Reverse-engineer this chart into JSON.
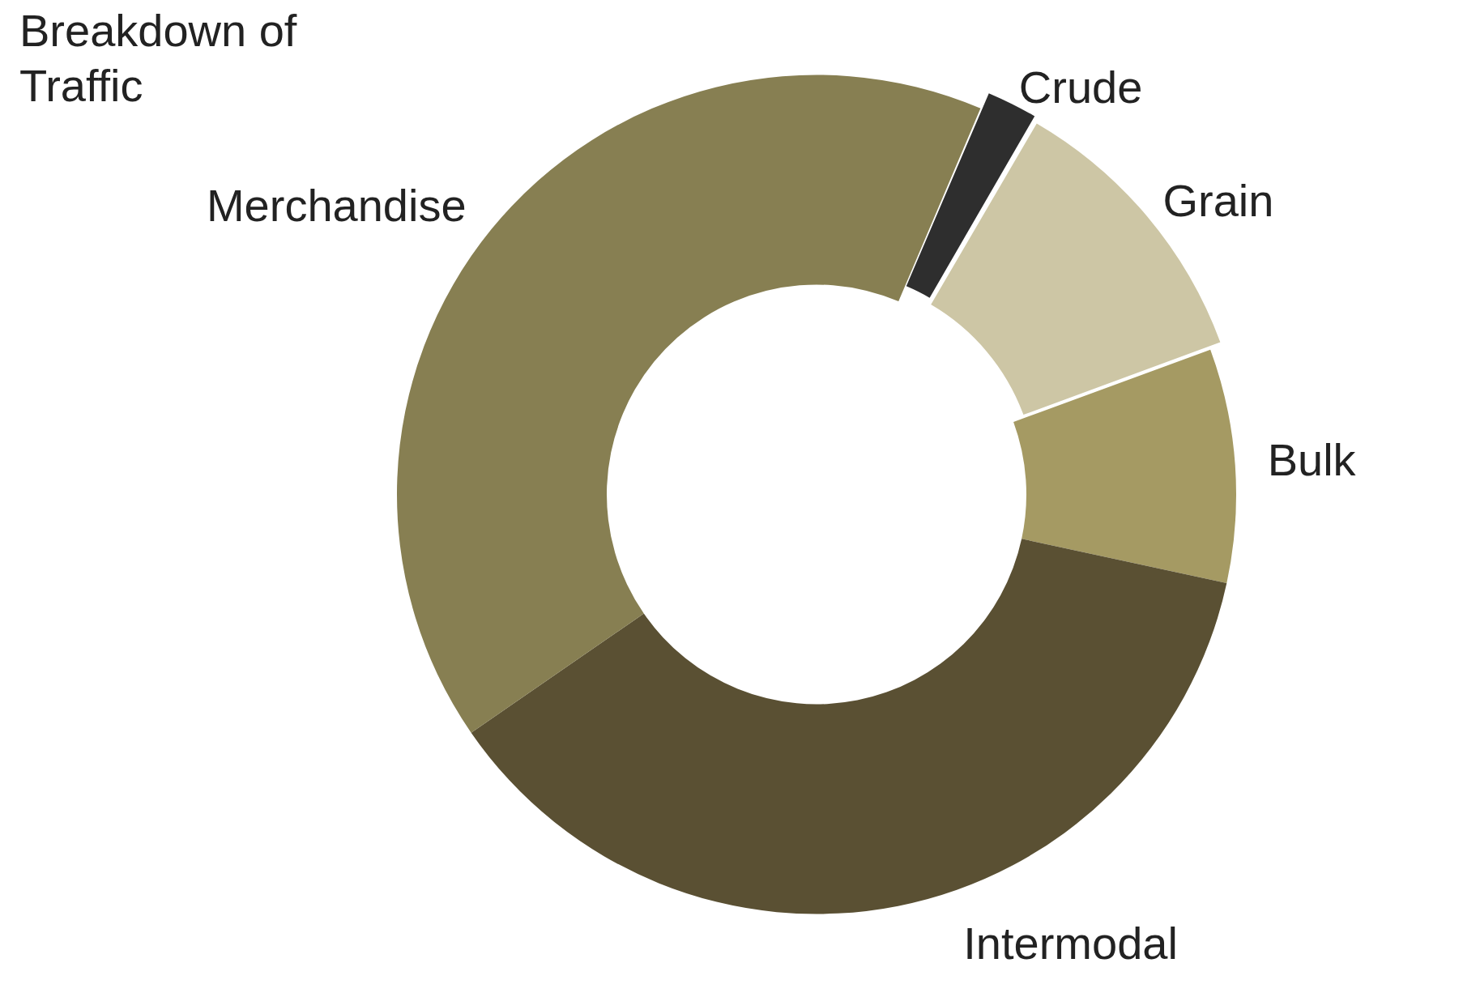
{
  "chart_data": {
    "type": "donut",
    "title": "Breakdown of Traffic",
    "categories": [
      "Crude",
      "Grain",
      "Bulk",
      "Intermodal",
      "Merchandise"
    ],
    "values": [
      2,
      11,
      9,
      37,
      41
    ],
    "colors": [
      "#2e2e2e",
      "#cdc6a5",
      "#a59a63",
      "#5a5033",
      "#877f52"
    ],
    "legend": false
  }
}
